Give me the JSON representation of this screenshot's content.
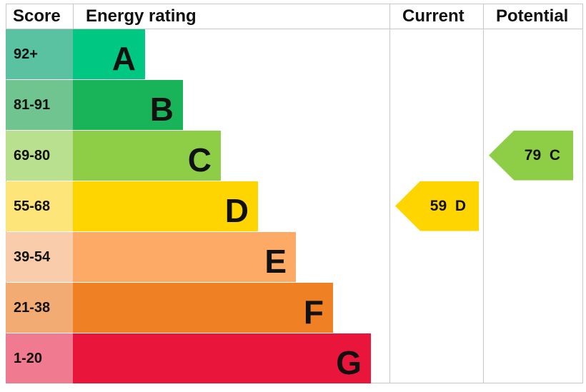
{
  "chart_data": {
    "type": "bar",
    "headers": {
      "score": "Score",
      "rating": "Energy rating",
      "current": "Current",
      "potential": "Potential"
    },
    "bands": [
      {
        "letter": "A",
        "range": "92+",
        "color": "#00c781",
        "score_color": "#5ac2a0"
      },
      {
        "letter": "B",
        "range": "81-91",
        "color": "#19b459",
        "score_color": "#6fc48f"
      },
      {
        "letter": "C",
        "range": "69-80",
        "color": "#8dce46",
        "score_color": "#b9e08e"
      },
      {
        "letter": "D",
        "range": "55-68",
        "color": "#ffd500",
        "score_color": "#fde57a"
      },
      {
        "letter": "E",
        "range": "39-54",
        "color": "#fcaa65",
        "score_color": "#f9ccab"
      },
      {
        "letter": "F",
        "range": "21-38",
        "color": "#ef8023",
        "score_color": "#f2ab73"
      },
      {
        "letter": "G",
        "range": "1-20",
        "color": "#e9153b",
        "score_color": "#f07a90"
      }
    ],
    "current": {
      "value": 59,
      "band": "D",
      "label": "59  D",
      "color": "#ffd500"
    },
    "potential": {
      "value": 79,
      "band": "C",
      "label": "79  C",
      "color": "#8dce46"
    }
  }
}
